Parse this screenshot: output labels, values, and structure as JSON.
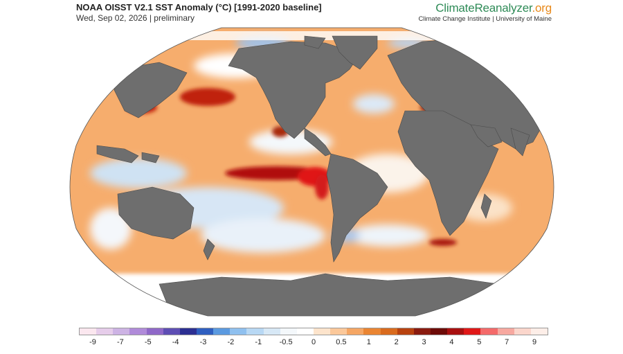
{
  "header": {
    "title": "NOAA OISST V2.1 SST Anomaly (°C) [1991-2020 baseline]",
    "subtitle": "Wed, Sep 02, 2026 | preliminary"
  },
  "brand": {
    "name_part1": "ClimateReanalyzer",
    "name_part2": ".org",
    "tagline": "Climate Change Institute | University of Maine",
    "color_primary": "#2e8b57",
    "color_accent": "#e8891a"
  },
  "map": {
    "projection": "Robinson-like",
    "land_color": "#6e6e6e",
    "ocean_base_color": "#f4a15a"
  },
  "colorbar": {
    "colors": [
      "#fbe7ef",
      "#e6cdea",
      "#cdb3e4",
      "#b08bd9",
      "#8f68c8",
      "#5e4eb4",
      "#2c2f92",
      "#2f5fc0",
      "#5b9ae0",
      "#8fc0ef",
      "#b8d8f4",
      "#d7e8f6",
      "#f4f8fb",
      "#ffffff",
      "#fde4cc",
      "#fbc89a",
      "#f5a664",
      "#ea8532",
      "#d96b1e",
      "#b8420f",
      "#8a1b0f",
      "#6d0b08",
      "#a81010",
      "#e01818",
      "#f46a6a",
      "#f7a8a0",
      "#fbd6cc",
      "#fdeee8"
    ],
    "tick_labels": [
      "-9",
      "-7",
      "-5",
      "-4",
      "-3",
      "-2",
      "-1",
      "-0.5",
      "0",
      "0.5",
      "1",
      "2",
      "3",
      "4",
      "5",
      "7",
      "9"
    ]
  }
}
